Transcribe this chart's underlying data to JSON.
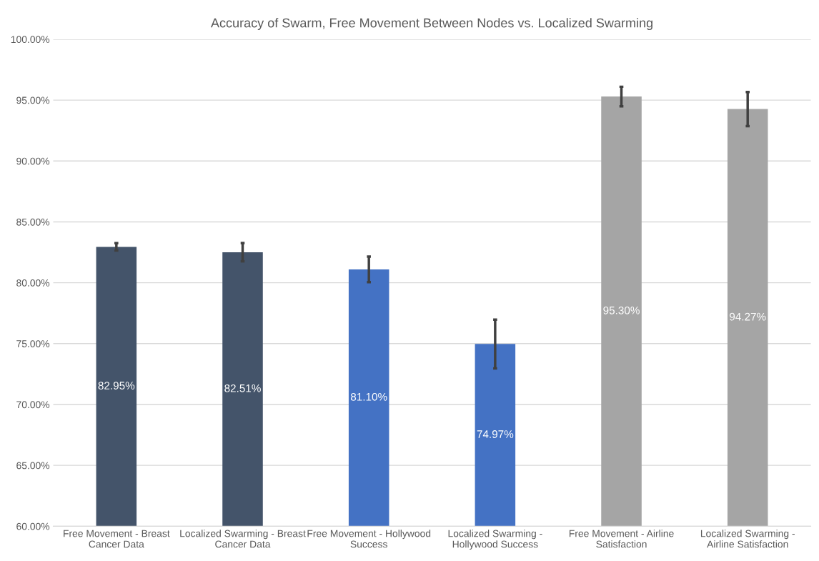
{
  "chart_data": {
    "type": "bar",
    "title": "Accuracy of Swarm, Free Movement Between Nodes vs. Localized Swarming",
    "categories": [
      "Free Movement - Breast Cancer Data",
      "Localized Swarming - Breast Cancer Data",
      "Free Movement - Hollywood Success",
      "Localized Swarming - Hollywood Success",
      "Free Movement - Airline Satisfaction",
      "Localized Swarming - Airline Satisfaction"
    ],
    "values": [
      82.95,
      82.51,
      81.1,
      74.97,
      95.3,
      94.27
    ],
    "errors": [
      0.3,
      0.75,
      1.05,
      2.0,
      0.8,
      1.4
    ],
    "value_labels": [
      "82.95%",
      "82.51%",
      "81.10%",
      "74.97%",
      "95.30%",
      "94.27%"
    ],
    "colors": [
      "#44546a",
      "#44546a",
      "#4472c4",
      "#4472c4",
      "#a5a5a5",
      "#a5a5a5"
    ],
    "ylim": [
      60,
      100
    ],
    "yticks": [
      {
        "value": 60,
        "label": "60.00%"
      },
      {
        "value": 65,
        "label": "65.00%"
      },
      {
        "value": 70,
        "label": "70.00%"
      },
      {
        "value": 75,
        "label": "75.00%"
      },
      {
        "value": 80,
        "label": "80.00%"
      },
      {
        "value": 85,
        "label": "85.00%"
      },
      {
        "value": 90,
        "label": "90.00%"
      },
      {
        "value": 95,
        "label": "95.00%"
      },
      {
        "value": 100,
        "label": "100.00%"
      }
    ],
    "grid": "y"
  }
}
